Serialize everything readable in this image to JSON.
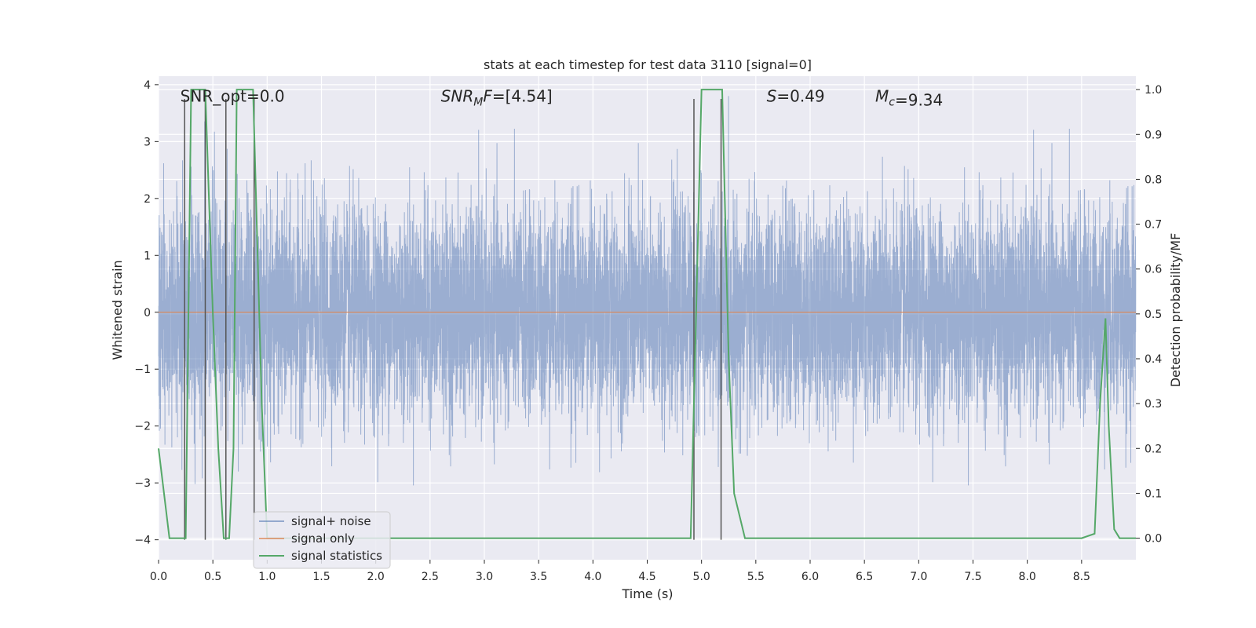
{
  "chart_data": {
    "type": "line",
    "title": "stats at each timestep for test data 3110 [signal=0]",
    "xlabel": "Time (s)",
    "ylabel": "Whitened strain",
    "y2label": "Detection probability/MF",
    "xlim": [
      0,
      9.0
    ],
    "ylim": [
      -4.35,
      4.15
    ],
    "y2lim": [
      -0.048,
      1.03
    ],
    "xticks": [
      0.0,
      0.5,
      1.0,
      1.5,
      2.0,
      2.5,
      3.0,
      3.5,
      4.0,
      4.5,
      5.0,
      5.5,
      6.0,
      6.5,
      7.0,
      7.5,
      8.0,
      8.5
    ],
    "yticks": [
      -4,
      -3,
      -2,
      -1,
      0,
      1,
      2,
      3,
      4
    ],
    "y2ticks": [
      0.0,
      0.1,
      0.2,
      0.3,
      0.4,
      0.5,
      0.6,
      0.7,
      0.8,
      0.9,
      1.0
    ],
    "grid": true,
    "legend_position": "bottom-left",
    "annotations": [
      {
        "id": "snr-opt",
        "text": "SNR_opt=0.0",
        "x": 0.2,
        "y": 3.8
      },
      {
        "id": "snr-mf",
        "text": "SNR_MF=[4.54]",
        "x": 2.6,
        "y": 3.8
      },
      {
        "id": "s-value",
        "text": "S=0.49",
        "x": 5.6,
        "y": 3.8
      },
      {
        "id": "mc-value",
        "text": "M_c=9.34",
        "x": 6.6,
        "y": 3.8
      }
    ],
    "series": [
      {
        "name": "signal+ noise",
        "axis": "left",
        "color": "#4c72b0",
        "opacity": 0.5,
        "description": "dense whitened strain noise, roughly Gaussian with std ~0.9, extremes near ±3.5",
        "sample_rate": 1024,
        "std": 0.9,
        "ymin": -4.0,
        "ymax": 3.8
      },
      {
        "name": "signal only",
        "axis": "left",
        "color": "#dd8452",
        "x": [
          0,
          9.0
        ],
        "y": [
          0,
          0
        ]
      },
      {
        "name": "signal statistics",
        "axis": "right",
        "color": "#55a868",
        "x": [
          0.0,
          0.05,
          0.1,
          0.2,
          0.25,
          0.3,
          0.35,
          0.43,
          0.5,
          0.55,
          0.6,
          0.65,
          0.69,
          0.72,
          0.8,
          0.87,
          0.95,
          1.0,
          1.5,
          2.0,
          2.5,
          3.0,
          3.5,
          4.0,
          4.5,
          4.9,
          4.95,
          5.0,
          5.05,
          5.15,
          5.19,
          5.25,
          5.3,
          5.4,
          5.5,
          6.0,
          6.5,
          7.0,
          7.5,
          8.0,
          8.5,
          8.62,
          8.67,
          8.72,
          8.75,
          8.8,
          8.85,
          9.0
        ],
        "y": [
          0.2,
          0.1,
          0.0,
          0.0,
          0.0,
          1.0,
          1.0,
          1.0,
          0.5,
          0.2,
          0.0,
          0.0,
          0.2,
          1.0,
          1.0,
          1.0,
          0.3,
          0.0,
          0.0,
          0.0,
          0.0,
          0.0,
          0.0,
          0.0,
          0.0,
          0.0,
          0.5,
          1.0,
          1.0,
          1.0,
          1.0,
          0.4,
          0.1,
          0.0,
          0.0,
          0.0,
          0.0,
          0.0,
          0.0,
          0.0,
          0.0,
          0.01,
          0.3,
          0.49,
          0.25,
          0.02,
          0.0,
          0.0
        ]
      }
    ],
    "markers": {
      "color": "#555555",
      "x": [
        0.24,
        0.43,
        0.62,
        0.88,
        4.93,
        5.18
      ],
      "y_top": 3.75,
      "y_bottom": -4.0
    }
  }
}
